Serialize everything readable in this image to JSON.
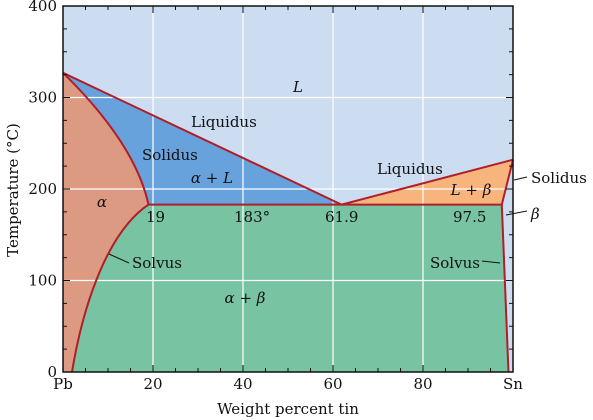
{
  "chart_data": {
    "type": "diagram",
    "xlabel": "Weight percent tin",
    "ylabel": "Temperature (°C)",
    "xlim": [
      0,
      100
    ],
    "ylim": [
      0,
      400
    ],
    "x_ticks": [
      {
        "value": 0,
        "label": "Pb"
      },
      {
        "value": 20,
        "label": "20"
      },
      {
        "value": 40,
        "label": "40"
      },
      {
        "value": 60,
        "label": "60"
      },
      {
        "value": 80,
        "label": "80"
      },
      {
        "value": 100,
        "label": "Sn"
      }
    ],
    "y_ticks": [
      0,
      100,
      200,
      300,
      400
    ],
    "grid": true,
    "eutectic": {
      "temperature": 183,
      "alpha_limit": 19,
      "composition": 61.9,
      "beta_limit": 97.5
    },
    "melting_points": {
      "Pb": 327,
      "Sn": 232
    },
    "phase_labels": {
      "liquid": "L",
      "alpha": "α",
      "beta": "β",
      "alpha_plus_liquid": "α + L",
      "liquid_plus_beta": "L + β",
      "alpha_plus_beta": "α + β"
    },
    "line_labels": {
      "liquidus_left": "Liquidus",
      "liquidus_right": "Liquidus",
      "solidus_left": "Solidus",
      "solidus_right": "Solidus",
      "solvus_left": "Solvus",
      "solvus_right": "Solvus"
    },
    "point_labels": {
      "alpha_limit": "19",
      "eutectic_temp": "183°",
      "eutectic_comp": "61.9",
      "beta_limit": "97.5"
    },
    "colors": {
      "liquid": "#cdddf1",
      "alpha": "#dc9a82",
      "alpha_plus_liquid": "#68a2dc",
      "liquid_plus_beta": "#f7b57d",
      "alpha_plus_beta": "#78c3a2",
      "boundary": "#b01e2a",
      "grid": "#ffffff"
    }
  }
}
